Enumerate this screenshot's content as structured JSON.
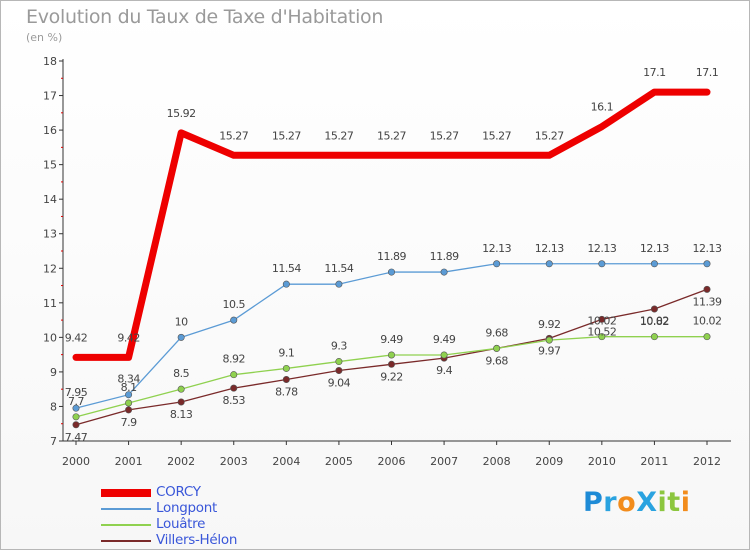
{
  "title": "Evolution du Taux de Taxe d'Habitation",
  "unit_label": "(en %)",
  "logo": {
    "text": "ProXiti",
    "letters": [
      {
        "ch": "P",
        "color": "#1e8bd6"
      },
      {
        "ch": "r",
        "color": "#2aa3e0"
      },
      {
        "ch": "o",
        "color": "#f28c1c"
      },
      {
        "ch": "X",
        "color": "#2aa3e0"
      },
      {
        "ch": "i",
        "color": "#8cc63f"
      },
      {
        "ch": "t",
        "color": "#8cc63f"
      },
      {
        "ch": "i",
        "color": "#f28c1c"
      }
    ]
  },
  "chart_data": {
    "type": "line",
    "title": "Evolution du Taux de Taxe d'Habitation",
    "ylabel": "(en %)",
    "xlabel": "",
    "ylim": [
      7,
      18
    ],
    "yticks": [
      7,
      8,
      9,
      10,
      11,
      12,
      13,
      14,
      15,
      16,
      17,
      18
    ],
    "y_tick_labels": [
      "7",
      "8",
      "9",
      "10",
      "11",
      "12",
      "13",
      "14",
      "15",
      "16",
      "17",
      "18"
    ],
    "categories": [
      "2000",
      "2001",
      "2002",
      "2003",
      "2004",
      "2005",
      "2006",
      "2007",
      "2008",
      "2009",
      "2010",
      "2011",
      "2012"
    ],
    "grid": false,
    "legend_position": "bottom-left",
    "series": [
      {
        "name": "CORCY",
        "color": "#ee0000",
        "values": [
          9.42,
          9.42,
          15.92,
          15.27,
          15.27,
          15.27,
          15.27,
          15.27,
          15.27,
          15.27,
          16.1,
          17.1,
          17.1
        ],
        "labels": [
          "9.42",
          "9.42",
          "15.92",
          "15.27",
          "15.27",
          "15.27",
          "15.27",
          "15.27",
          "15.27",
          "15.27",
          "16.1",
          "17.1",
          "17.1"
        ]
      },
      {
        "name": "Longpont",
        "color": "#5b9bd5",
        "values": [
          7.95,
          8.34,
          10,
          10.5,
          11.54,
          11.54,
          11.89,
          11.89,
          12.13,
          12.13,
          12.13,
          12.13,
          12.13
        ],
        "labels": [
          "7.95",
          "8.34",
          "10",
          "10.5",
          "11.54",
          "11.54",
          "11.89",
          "11.89",
          "12.13",
          "12.13",
          "12.13",
          "12.13",
          "12.13"
        ]
      },
      {
        "name": "Louâtre",
        "color": "#8fd14f",
        "values": [
          7.7,
          8.1,
          8.5,
          8.92,
          9.1,
          9.3,
          9.49,
          9.49,
          9.68,
          9.92,
          10.02,
          10.02,
          10.02
        ],
        "labels": [
          "7.7",
          "8.1",
          "8.5",
          "8.92",
          "9.1",
          "9.3",
          "9.49",
          "9.49",
          "9.68",
          "9.92",
          "10.02",
          "10.02",
          "10.02"
        ]
      },
      {
        "name": "Villers-Hélon",
        "color": "#7a2a2a",
        "values": [
          7.47,
          7.9,
          8.13,
          8.53,
          8.78,
          9.04,
          9.22,
          9.4,
          9.68,
          9.97,
          10.52,
          10.82,
          11.39
        ],
        "labels": [
          "7.47",
          "7.9",
          "8.13",
          "8.53",
          "8.78",
          "9.04",
          "9.22",
          "9.4",
          "9.68",
          "9.97",
          "10.52",
          "10.82",
          "11.39"
        ]
      }
    ]
  }
}
